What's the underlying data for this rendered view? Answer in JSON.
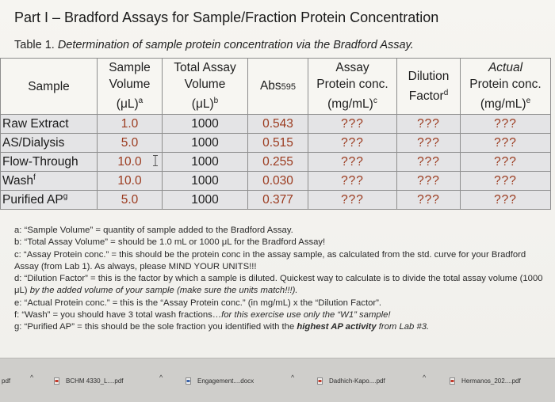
{
  "title": "Part I – Bradford Assays for Sample/Fraction Protein Concentration",
  "caption": {
    "label": "Table 1.",
    "text": "Determination of sample protein concentration via the Bradford Assay."
  },
  "table": {
    "headers": [
      {
        "lines": [
          "Sample"
        ],
        "sup": ""
      },
      {
        "lines": [
          "Sample",
          "Volume",
          "(μL)"
        ],
        "sup": "a"
      },
      {
        "lines": [
          "Total Assay",
          "Volume",
          "(μL)"
        ],
        "sup": "b"
      },
      {
        "lines": [
          "Abs595"
        ],
        "sup": ""
      },
      {
        "lines": [
          "Assay",
          "Protein conc.",
          "(mg/mL)"
        ],
        "sup": "c"
      },
      {
        "lines": [
          "Dilution",
          "Factor"
        ],
        "sup": "d"
      },
      {
        "lines": [
          "Actual",
          "Protein conc.",
          "(mg/mL)"
        ],
        "sup": "e"
      }
    ],
    "rows": [
      {
        "sample": "Raw Extract",
        "sup": "",
        "vol": "1.0",
        "total": "1000",
        "abs": "0.543",
        "conc": "???",
        "dil": "???",
        "actual": "???"
      },
      {
        "sample": "AS/Dialysis",
        "sup": "",
        "vol": "5.0",
        "total": "1000",
        "abs": "0.515",
        "conc": "???",
        "dil": "???",
        "actual": "???"
      },
      {
        "sample": "Flow-Through",
        "sup": "",
        "vol": "10.0",
        "total": "1000",
        "abs": "0.255",
        "conc": "???",
        "dil": "???",
        "actual": "???"
      },
      {
        "sample": "Wash",
        "sup": "f",
        "vol": "10.0",
        "total": "1000",
        "abs": "0.030",
        "conc": "???",
        "dil": "???",
        "actual": "???"
      },
      {
        "sample": "Purified AP",
        "sup": "g",
        "vol": "5.0",
        "total": "1000",
        "abs": "0.377",
        "conc": "???",
        "dil": "???",
        "actual": "???"
      }
    ]
  },
  "notes": {
    "a": "a: “Sample Volume” = quantity of sample added to the Bradford Assay.",
    "b": "b: “Total Assay Volume” = should be 1.0 mL or 1000 μL for the Bradford Assay!",
    "c": "c: “Assay Protein conc.” = this should be the protein conc in the assay sample, as calculated from the std. curve for your Bradford Assay (from Lab 1). As always, please MIND YOUR UNITS!!!",
    "d_plain": "d: “Dilution Factor” = this is the factor by which a sample is diluted. Quickest way to calculate is to divide the total assay volume (1000 μL) ",
    "d_italic": "by the added volume of your sample (make sure the units match!!!).",
    "e": "e: “Actual Protein conc.” = this is the “Assay Protein conc.” (in mg/mL) x the “Dilution Factor”.",
    "f_plain": "f: “Wash” = you should have 3 total wash fractions…",
    "f_italic": "for this exercise use only the “W1” sample!",
    "g_plain": "g: “Purified AP” = this should be the sole fraction you identified with the ",
    "g_bold": "highest AP activity",
    "g_end": " from Lab #3."
  },
  "downloads": [
    {
      "name": "pdf",
      "chev": "^"
    },
    {
      "name": "BCHM 4330_L....pdf",
      "chev": "^"
    },
    {
      "name": "Engagement....docx",
      "chev": "^"
    },
    {
      "name": "Dadhich-Kapo....pdf",
      "chev": "^"
    },
    {
      "name": "Hermanos_202....pdf",
      "chev": ""
    }
  ],
  "colors": {
    "value_text": "#9b3a1e",
    "table_header_bg": "#f7f6f2",
    "table_body_bg": "#e4e4e6"
  }
}
